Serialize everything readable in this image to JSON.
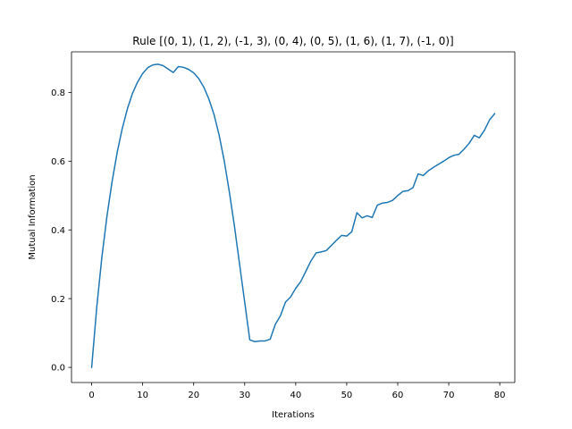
{
  "chart_data": {
    "type": "line",
    "title": "Rule [(0, 1), (1, 2), (-1, 3), (0, 4), (0, 5), (1, 6), (1, 7), (-1, 0)]",
    "xlabel": "Iterations",
    "ylabel": "Mutual Information",
    "xlim": [
      -3.95,
      82.95
    ],
    "ylim": [
      -0.044,
      0.918
    ],
    "xticks": [
      0,
      10,
      20,
      30,
      40,
      50,
      60,
      70,
      80
    ],
    "yticks": [
      0.0,
      0.2,
      0.4,
      0.6,
      0.8
    ],
    "xtick_labels": [
      "0",
      "10",
      "20",
      "30",
      "40",
      "50",
      "60",
      "70",
      "80"
    ],
    "ytick_labels": [
      "0.0",
      "0.2",
      "0.4",
      "0.6",
      "0.8"
    ],
    "grid": false,
    "legend": "none",
    "series": [
      {
        "color": "#1f77b4",
        "x": [
          0,
          1,
          2,
          3,
          4,
          5,
          6,
          7,
          8,
          9,
          10,
          11,
          12,
          13,
          14,
          15,
          16,
          17,
          18,
          19,
          20,
          21,
          22,
          23,
          24,
          25,
          26,
          27,
          28,
          29,
          30,
          31,
          32,
          33,
          34,
          35,
          36,
          37,
          38,
          39,
          40,
          41,
          42,
          43,
          44,
          45,
          46,
          47,
          48,
          49,
          50,
          51,
          52,
          53,
          54,
          55,
          56,
          57,
          58,
          59,
          60,
          61,
          62,
          63,
          64,
          65,
          66,
          67,
          68,
          69,
          70,
          71,
          72,
          73,
          74,
          75,
          76,
          77,
          78,
          79
        ],
        "y": [
          0.0,
          0.175,
          0.32,
          0.44,
          0.54,
          0.625,
          0.695,
          0.752,
          0.797,
          0.83,
          0.855,
          0.872,
          0.88,
          0.882,
          0.878,
          0.868,
          0.858,
          0.875,
          0.873,
          0.867,
          0.857,
          0.84,
          0.815,
          0.78,
          0.735,
          0.675,
          0.6,
          0.51,
          0.41,
          0.3,
          0.19,
          0.08,
          0.075,
          0.077,
          0.077,
          0.082,
          0.125,
          0.15,
          0.19,
          0.205,
          0.23,
          0.25,
          0.28,
          0.31,
          0.333,
          0.336,
          0.34,
          0.355,
          0.37,
          0.384,
          0.382,
          0.395,
          0.45,
          0.435,
          0.441,
          0.436,
          0.472,
          0.478,
          0.48,
          0.486,
          0.5,
          0.512,
          0.514,
          0.523,
          0.563,
          0.558,
          0.572,
          0.582,
          0.591,
          0.6,
          0.61,
          0.617,
          0.62,
          0.635,
          0.652,
          0.675,
          0.668,
          0.69,
          0.72,
          0.738
        ]
      }
    ]
  }
}
